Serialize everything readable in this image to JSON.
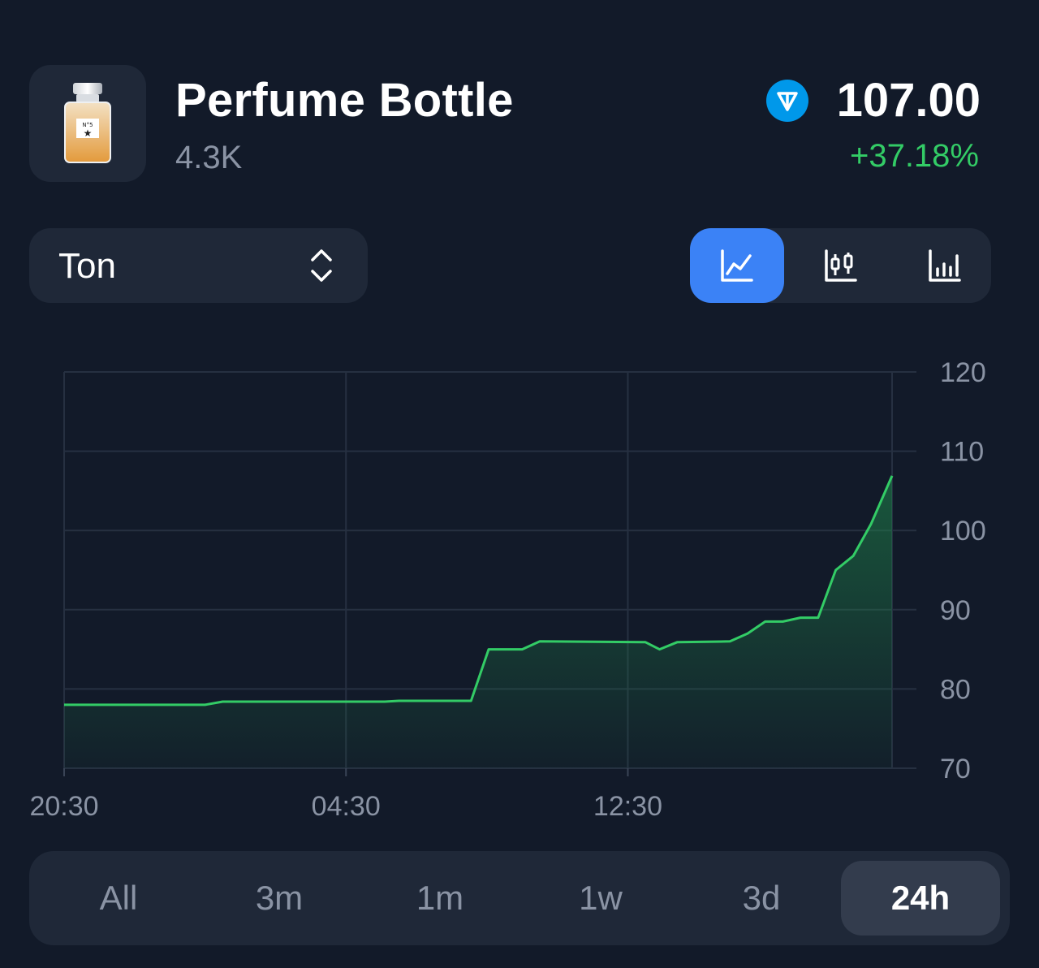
{
  "header": {
    "title": "Perfume Bottle",
    "subtitle": "4.3K",
    "price": "107.00",
    "change": "+37.18%",
    "coin_icon": "ton-icon"
  },
  "controls": {
    "currency": "Ton",
    "chart_types": [
      {
        "name": "line-chart-icon",
        "active": true
      },
      {
        "name": "candlestick-chart-icon",
        "active": false
      },
      {
        "name": "bar-chart-icon",
        "active": false
      }
    ]
  },
  "ranges": [
    {
      "label": "All",
      "active": false
    },
    {
      "label": "3m",
      "active": false
    },
    {
      "label": "1m",
      "active": false
    },
    {
      "label": "1w",
      "active": false
    },
    {
      "label": "3d",
      "active": false
    },
    {
      "label": "24h",
      "active": true
    }
  ],
  "colors": {
    "background": "#121a29",
    "panel": "#1f2838",
    "accent": "#3b82f6",
    "positive": "#33cc66",
    "muted": "#8a93a4"
  },
  "chart_data": {
    "type": "area",
    "x_ticks": [
      "20:30",
      "04:30",
      "12:30"
    ],
    "y_ticks": [
      70,
      80,
      90,
      100,
      110,
      120
    ],
    "ylim": [
      70,
      120
    ],
    "grid": true,
    "series": [
      {
        "color": "#33cc66",
        "points": [
          [
            0,
            78
          ],
          [
            4.0,
            78
          ],
          [
            4.5,
            78.4
          ],
          [
            9.1,
            78.4
          ],
          [
            9.5,
            78.5
          ],
          [
            11.55,
            78.5
          ],
          [
            12.05,
            85
          ],
          [
            13.0,
            85
          ],
          [
            13.5,
            86
          ],
          [
            16.5,
            85.9
          ],
          [
            16.9,
            85.0
          ],
          [
            17.4,
            85.9
          ],
          [
            18.9,
            86
          ],
          [
            19.4,
            87
          ],
          [
            19.9,
            88.5
          ],
          [
            20.4,
            88.5
          ],
          [
            20.9,
            89
          ],
          [
            21.4,
            89
          ],
          [
            21.9,
            95
          ],
          [
            22.4,
            96.8
          ],
          [
            22.9,
            100.8
          ],
          [
            23.5,
            106.9
          ]
        ]
      }
    ]
  }
}
